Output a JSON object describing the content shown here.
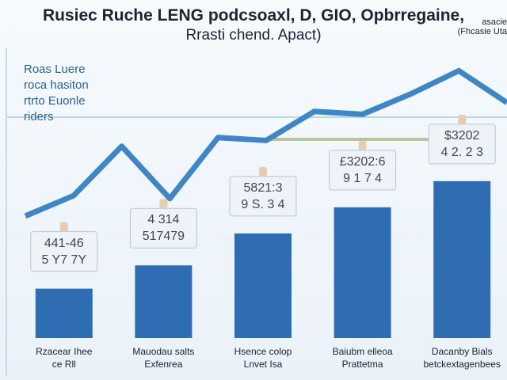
{
  "header": {
    "title": "Rusiec Ruche LENG podcsoaxl, D, GIO, Opbrregaine,",
    "subtitle": "Rrasti chend. Apact)",
    "corner_note": "asacie\n(Fhcasie Uta"
  },
  "side_note": "Roas Luere\nroca hasiton\nrtrto Euonle\nriders",
  "chart_data": [
    {
      "type": "bar",
      "categories": [
        "Rzacear Ihee\nce Rll",
        "Mauodau salts\nExfenrea",
        "Hsence colop\nLnvet Isa",
        "Baiubm elleoa\nPrattetma",
        "Dacanby Bials\nbetckextagenbees"
      ],
      "values": [
        17,
        25,
        36,
        45,
        54
      ],
      "annotations": [
        "441-46\n5 Y7 7Y",
        "4 314\n517479",
        "5821:3\n9 S. 3 4",
        "£3202:6\n9 1 7 4",
        "$3202\n4 2. 2 3"
      ],
      "color": "#2f6db3",
      "ylim": [
        0,
        100
      ]
    },
    {
      "type": "line",
      "categories": [
        null,
        null,
        null,
        null,
        null,
        null,
        null,
        null,
        null,
        null,
        null
      ],
      "values": [
        42,
        49,
        66,
        48,
        69,
        68,
        78,
        77,
        84,
        92,
        81
      ],
      "color": "#3f86c6",
      "ylim": [
        0,
        100
      ]
    }
  ]
}
